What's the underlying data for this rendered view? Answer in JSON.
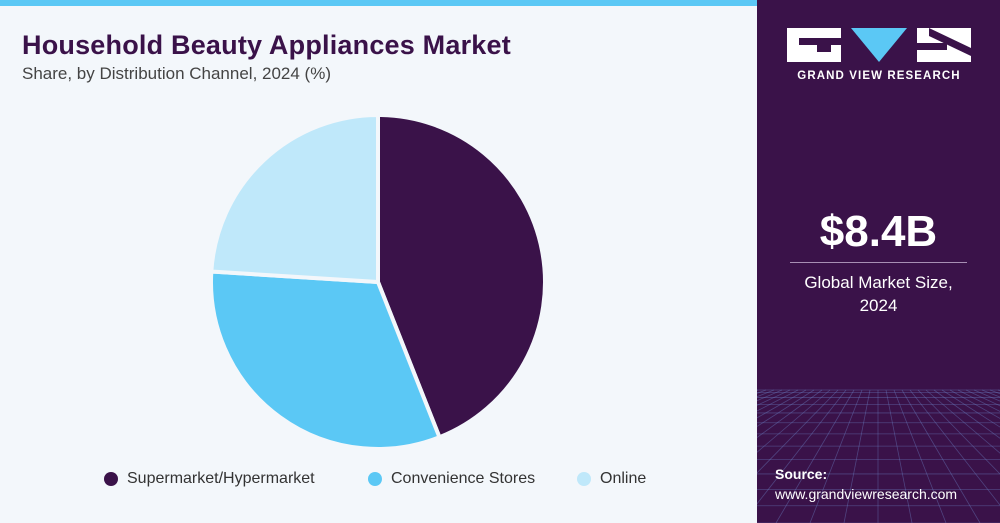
{
  "header": {
    "title": "Household Beauty Appliances Market",
    "subtitle": "Share, by Distribution Channel, 2024 (%)"
  },
  "chart_data": {
    "type": "pie",
    "title": "Household Beauty Appliances Market",
    "subtitle": "Share, by Distribution Channel, 2024 (%)",
    "categories": [
      "Supermarket/Hypermarket",
      "Convenience Stores",
      "Online"
    ],
    "values": [
      44,
      32,
      24
    ],
    "colors": [
      "#3a1249",
      "#5bc8f5",
      "#bfe8fa"
    ],
    "start_angle": "12 o'clock",
    "direction": "clockwise",
    "legend_position": "bottom"
  },
  "legend": {
    "items": [
      {
        "label": "Supermarket/Hypermarket",
        "color": "#3a1249"
      },
      {
        "label": "Convenience Stores",
        "color": "#5bc8f5"
      },
      {
        "label": "Online",
        "color": "#bfe8fa"
      }
    ]
  },
  "sidebar": {
    "logo_text": "GRAND VIEW RESEARCH",
    "kpi_value": "$8.4B",
    "kpi_label_line1": "Global Market Size,",
    "kpi_label_line2": "2024",
    "source_label": "Source:",
    "source_url": "www.grandviewresearch.com",
    "background_color": "#3a1249",
    "accent_color": "#5bc8f5"
  }
}
